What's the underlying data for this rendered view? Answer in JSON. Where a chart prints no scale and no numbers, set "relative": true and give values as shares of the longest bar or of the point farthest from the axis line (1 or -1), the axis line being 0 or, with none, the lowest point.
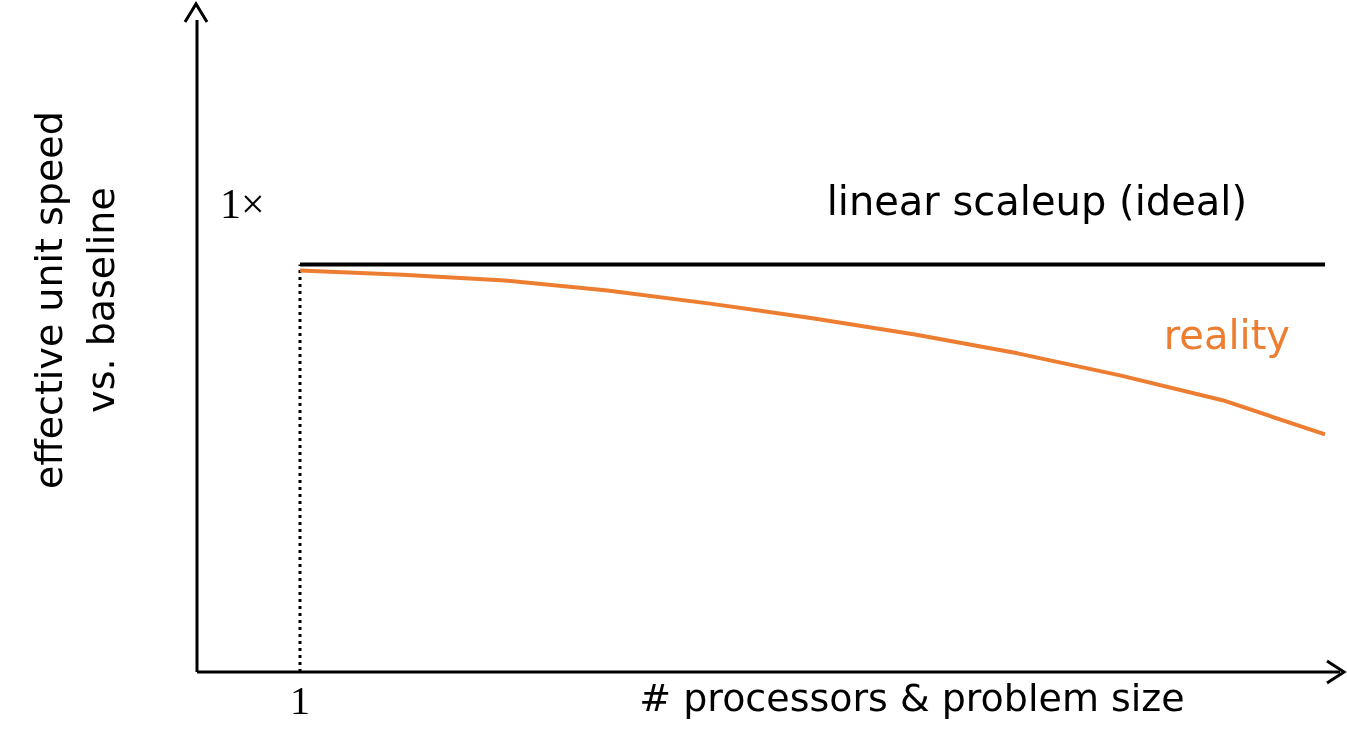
{
  "chart_data": {
    "type": "line",
    "relative": true,
    "xlabel": "# processors & problem size",
    "ylabel": "effective unit speed\nvs. baseline",
    "categories": [
      null,
      null,
      null,
      null,
      null,
      null,
      null,
      null,
      null,
      null,
      null
    ],
    "series": [
      {
        "name": "linear scaleup (ideal)",
        "color": "#000000",
        "values": [
          1,
          1,
          1,
          1,
          1,
          1,
          1,
          1,
          1,
          1,
          1
        ]
      },
      {
        "name": "reality",
        "color": "#ed7d31",
        "values": [
          0.985,
          0.975,
          0.961,
          0.936,
          0.904,
          0.868,
          0.828,
          0.782,
          0.728,
          0.667,
          0.583
        ]
      }
    ],
    "annotations": [
      "1×"
    ],
    "ref_lines": [
      {
        "axis": "x",
        "label": "1",
        "line_style": "dotted"
      }
    ],
    "legend": false,
    "grid": false,
    "marker": "none",
    "line_style": "solid"
  }
}
